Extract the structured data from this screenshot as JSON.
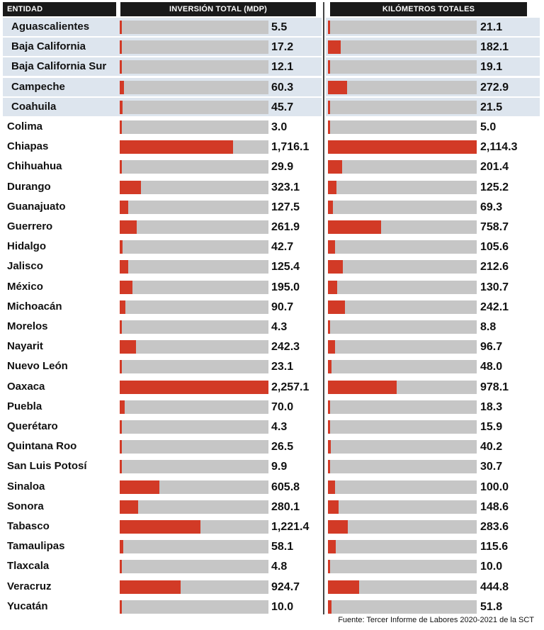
{
  "headers": {
    "entity": "ENTIDAD",
    "investment": "INVERSIÓN TOTAL (MDP)",
    "kilometers": "KILÓMETROS TOTALES"
  },
  "chart_data": {
    "type": "bar",
    "categories": [
      "Aguascalientes",
      "Baja California",
      "Baja California Sur",
      "Campeche",
      "Coahuila",
      "Colima",
      "Chiapas",
      "Chihuahua",
      "Durango",
      "Guanajuato",
      "Guerrero",
      "Hidalgo",
      "Jalisco",
      "México",
      "Michoacán",
      "Morelos",
      "Nayarit",
      "Nuevo León",
      "Oaxaca",
      "Puebla",
      "Querétaro",
      "Quintana Roo",
      "San Luis Potosí",
      "Sinaloa",
      "Sonora",
      "Tabasco",
      "Tamaulipas",
      "Tlaxcala",
      "Veracruz",
      "Yucatán"
    ],
    "series": [
      {
        "name": "INVERSIÓN TOTAL (MDP)",
        "values": [
          5.5,
          17.2,
          12.1,
          60.3,
          45.7,
          3.0,
          1716.1,
          29.9,
          323.1,
          127.5,
          261.9,
          42.7,
          125.4,
          195.0,
          90.7,
          4.3,
          242.3,
          23.1,
          2257.1,
          70.0,
          4.3,
          26.5,
          9.9,
          605.8,
          280.1,
          1221.4,
          58.1,
          4.8,
          924.7,
          10.0
        ],
        "labels": [
          "5.5",
          "17.2",
          "12.1",
          "60.3",
          "45.7",
          "3.0",
          "1,716.1",
          "29.9",
          "323.1",
          "127.5",
          "261.9",
          "42.7",
          "125.4",
          "195.0",
          "90.7",
          "4.3",
          "242.3",
          "23.1",
          "2,257.1",
          "70.0",
          "4.3",
          "26.5",
          "9.9",
          "605.8",
          "280.1",
          "1,221.4",
          "58.1",
          "4.8",
          "924.7",
          "10.0"
        ],
        "max": 2257.1
      },
      {
        "name": "KILÓMETROS TOTALES",
        "values": [
          21.1,
          182.1,
          19.1,
          272.9,
          21.5,
          5.0,
          2114.3,
          201.4,
          125.2,
          69.3,
          758.7,
          105.6,
          212.6,
          130.7,
          242.1,
          8.8,
          96.7,
          48.0,
          978.1,
          18.3,
          15.9,
          40.2,
          30.7,
          100.0,
          148.6,
          283.6,
          115.6,
          10.0,
          444.8,
          51.8
        ],
        "labels": [
          "21.1",
          "182.1",
          "19.1",
          "272.9",
          "21.5",
          "5.0",
          "2,114.3",
          "201.4",
          "125.2",
          "69.3",
          "758.7",
          "105.6",
          "212.6",
          "130.7",
          "242.1",
          "8.8",
          "96.7",
          "48.0",
          "978.1",
          "18.3",
          "15.9",
          "40.2",
          "30.7",
          "100.0",
          "148.6",
          "283.6",
          "115.6",
          "10.0",
          "444.8",
          "51.8"
        ],
        "max": 2114.3
      }
    ],
    "colors": {
      "bar": "#d23a26",
      "track": "#c6c6c6",
      "stripe": "#dde5ee",
      "header_bg": "#1a1a1a"
    }
  },
  "source": "Fuente: Tercer Informe de Labores 2020-2021 de la SCT"
}
